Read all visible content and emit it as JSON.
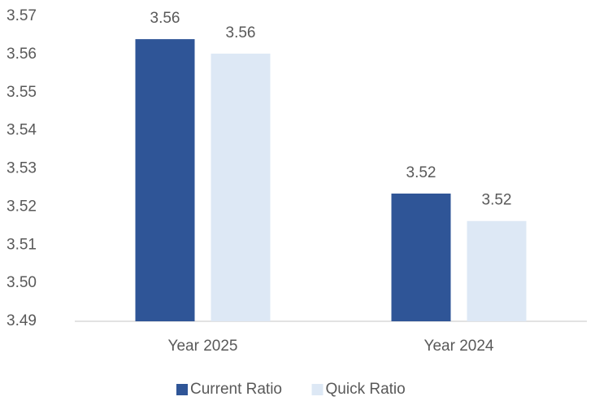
{
  "chart_data": {
    "type": "bar",
    "categories": [
      "Year 2025",
      "Year 2024"
    ],
    "series": [
      {
        "name": "Current Ratio",
        "color": "#2f5597",
        "values": [
          3.564,
          3.5235
        ],
        "value_labels": [
          "3.56",
          "3.52"
        ]
      },
      {
        "name": "Quick Ratio",
        "color": "#dde8f5",
        "values": [
          3.5602,
          3.5163
        ],
        "value_labels": [
          "3.56",
          "3.52"
        ]
      }
    ],
    "ylim": [
      3.49,
      3.57
    ],
    "yticks": [
      3.49,
      {
        "value": 3.5,
        "label": "3.50"
      },
      3.51,
      3.52,
      3.53,
      3.54,
      3.55,
      3.56,
      3.57
    ],
    "grid": false,
    "legend": "bottom"
  }
}
